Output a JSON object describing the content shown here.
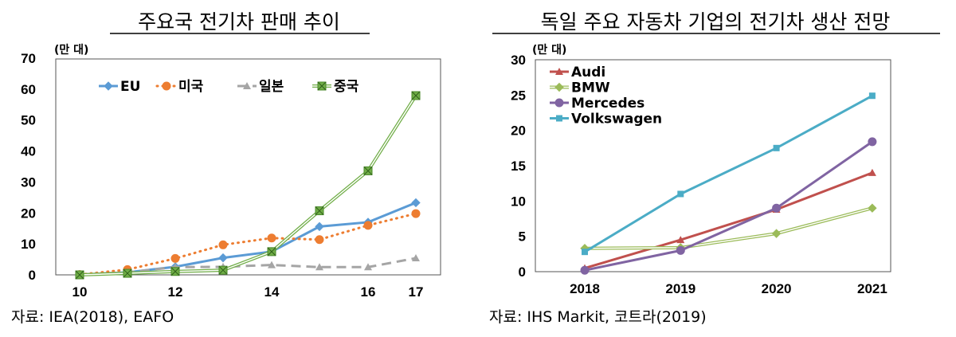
{
  "chart_data": [
    {
      "type": "line",
      "title": "주요국 전기차 판매 추이",
      "unit": "(만 대)",
      "source": "자료: IEA(2018), EAFO",
      "x": [
        10,
        11,
        12,
        13,
        14,
        15,
        16,
        17
      ],
      "xticks": [
        10,
        12,
        14,
        16,
        17
      ],
      "ylim": [
        0,
        70
      ],
      "yticks": [
        0,
        10,
        20,
        30,
        40,
        50,
        60,
        70
      ],
      "grid": false,
      "legend": "top",
      "series": [
        {
          "name": "EU",
          "color": "#5B9BD5",
          "marker": "diamond",
          "dash": "solid",
          "values": [
            0.1,
            0.8,
            2.6,
            5.5,
            7.5,
            15.6,
            17.0,
            23.3
          ]
        },
        {
          "name": "미국",
          "color": "#ED7D31",
          "marker": "circle",
          "dash": "dotted",
          "values": [
            0.1,
            1.7,
            5.3,
            9.7,
            11.9,
            11.4,
            16.0,
            19.8
          ]
        },
        {
          "name": "일본",
          "color": "#A5A5A5",
          "marker": "triangle",
          "dash": "dashed",
          "values": [
            0.1,
            0.8,
            2.5,
            2.6,
            3.2,
            2.5,
            2.5,
            5.4
          ]
        },
        {
          "name": "중국",
          "color": "#70AD47",
          "marker": "square-x",
          "dash": "double",
          "values": [
            0.0,
            0.5,
            1.1,
            1.5,
            7.5,
            20.7,
            33.6,
            57.9
          ]
        }
      ]
    },
    {
      "type": "line",
      "title": "독일 주요 자동차 기업의 전기차 생산 전망",
      "unit": "(만 대)",
      "source": "자료: IHS Markit, 코트라(2019)",
      "x": [
        "2018",
        "2019",
        "2020",
        "2021"
      ],
      "ylim": [
        0,
        30
      ],
      "yticks": [
        0,
        5,
        10,
        15,
        20,
        25,
        30
      ],
      "grid": false,
      "legend": "top-left",
      "series": [
        {
          "name": "Audi",
          "color": "#C0504D",
          "marker": "triangle",
          "dash": "solid",
          "values": [
            0.5,
            4.5,
            8.8,
            14.0
          ]
        },
        {
          "name": "BMW",
          "color": "#9BBB59",
          "marker": "diamond",
          "dash": "double",
          "values": [
            3.3,
            3.4,
            5.4,
            9.0
          ]
        },
        {
          "name": "Mercedes",
          "color": "#8064A2",
          "marker": "circle",
          "dash": "solid",
          "values": [
            0.2,
            3.0,
            9.0,
            18.4
          ]
        },
        {
          "name": "Volkswagen",
          "color": "#4BACC6",
          "marker": "square",
          "dash": "solid",
          "values": [
            2.8,
            11.0,
            17.5,
            24.9
          ]
        }
      ]
    }
  ]
}
